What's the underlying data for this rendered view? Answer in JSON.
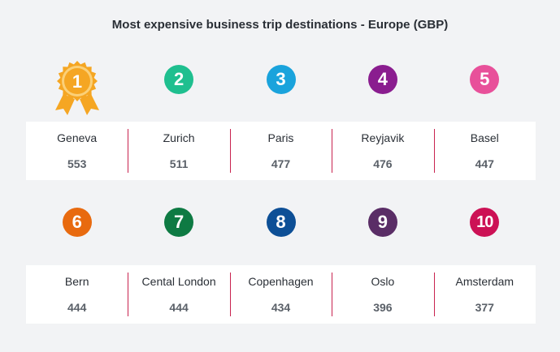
{
  "title": "Most expensive business trip destinations - Europe (GBP)",
  "chart_data": {
    "type": "table",
    "title": "Most expensive business trip destinations - Europe (GBP)",
    "categories": [
      "Geneva",
      "Zurich",
      "Paris",
      "Reyjavik",
      "Basel",
      "Bern",
      "Cental London",
      "Copenhagen",
      "Oslo",
      "Amsterdam"
    ],
    "values": [
      553,
      511,
      477,
      476,
      447,
      444,
      444,
      434,
      396,
      377
    ],
    "ranks": [
      "1",
      "2",
      "3",
      "4",
      "5",
      "6",
      "7",
      "8",
      "9",
      "10"
    ],
    "rank_colors": [
      "#f5a623",
      "#1fbf8f",
      "#1aa3dc",
      "#8a1d8f",
      "#e8509a",
      "#e86a0f",
      "#0e7a43",
      "#0d4f96",
      "#5a2d66",
      "#cc1155"
    ]
  }
}
